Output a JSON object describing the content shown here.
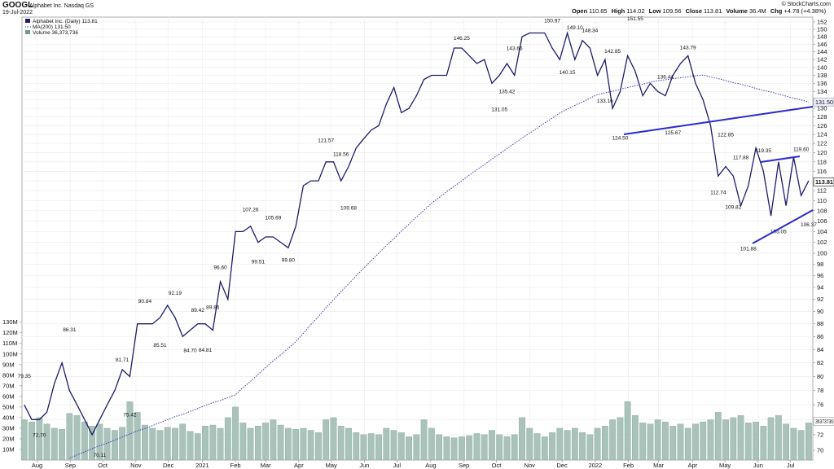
{
  "header": {
    "symbol": "GOOGL",
    "name": "Alphabet Inc. Nasdaq GS",
    "date": "19-Jul-2022",
    "quote": [
      {
        "label": "Open",
        "value": "110.85"
      },
      {
        "label": "High",
        "value": "114.02"
      },
      {
        "label": "Low",
        "value": "109.56"
      },
      {
        "label": "Close",
        "value": "113.81"
      },
      {
        "label": "Volume",
        "value": "36.4M"
      },
      {
        "label": "Chg",
        "value": "+4.78 (+4.38%)"
      }
    ],
    "copyright": "© StockCharts.com"
  },
  "chart_data": {
    "type": "line",
    "ylog": true,
    "grid": true,
    "xlim": [
      -0.3,
      104.55
    ],
    "xticks": [
      {
        "value": 1.7,
        "label": "Aug"
      },
      {
        "value": 6.1,
        "label": "Sep"
      },
      {
        "value": 10.4,
        "label": "Oct"
      },
      {
        "value": 14.8,
        "label": "Nov"
      },
      {
        "value": 19.1,
        "label": "Dec"
      },
      {
        "value": 23.6,
        "label": "2021"
      },
      {
        "value": 28,
        "label": "Feb"
      },
      {
        "value": 32,
        "label": "Mar"
      },
      {
        "value": 36.4,
        "label": "Apr"
      },
      {
        "value": 40.7,
        "label": "May"
      },
      {
        "value": 45.1,
        "label": "Jun"
      },
      {
        "value": 49.4,
        "label": "Jul"
      },
      {
        "value": 53.9,
        "label": "Aug"
      },
      {
        "value": 58.3,
        "label": "Sep"
      },
      {
        "value": 62.6,
        "label": "Oct"
      },
      {
        "value": 67,
        "label": "Nov"
      },
      {
        "value": 71.3,
        "label": "Dec"
      },
      {
        "value": 75.7,
        "label": "2022"
      },
      {
        "value": 80.1,
        "label": "Feb"
      },
      {
        "value": 84.1,
        "label": "Mar"
      },
      {
        "value": 88.6,
        "label": "Apr"
      },
      {
        "value": 92.9,
        "label": "May"
      },
      {
        "value": 97.3,
        "label": "Jun"
      },
      {
        "value": 101.6,
        "label": "Jul"
      }
    ],
    "ylim": [
      68.77,
      153.35
    ],
    "yticks": [
      70,
      72,
      74,
      76,
      78,
      80,
      82,
      84,
      86,
      88,
      90,
      92,
      94,
      96,
      98,
      100,
      102,
      104,
      106,
      108,
      110,
      112,
      114,
      116,
      118,
      120,
      122,
      124,
      126,
      128,
      130,
      132,
      134,
      136,
      138,
      140,
      142,
      144,
      146,
      148,
      150,
      152
    ],
    "y2lim": [
      0,
      417.7
    ],
    "y2ticks": [
      {
        "value": 10,
        "label": "10M"
      },
      {
        "value": 20,
        "label": "20M"
      },
      {
        "value": 30,
        "label": "30M"
      },
      {
        "value": 40,
        "label": "40M"
      },
      {
        "value": 50,
        "label": "50M"
      },
      {
        "value": 60,
        "label": "60M"
      },
      {
        "value": 70,
        "label": "70M"
      },
      {
        "value": 80,
        "label": "80M"
      },
      {
        "value": 90,
        "label": "90M"
      },
      {
        "value": 100,
        "label": "100M"
      },
      {
        "value": 110,
        "label": "110M"
      },
      {
        "value": 120,
        "label": "120M"
      },
      {
        "value": 130,
        "label": "130M"
      }
    ],
    "series": [
      {
        "name": "Alphabet Inc. (Daily) 113.81",
        "color": "#1c1c6b",
        "values": [
          76,
          74,
          74,
          75,
          79,
          82,
          78,
          76,
          74,
          72,
          74,
          76,
          78,
          81,
          80,
          88,
          88,
          88,
          89,
          91,
          89,
          86,
          87,
          88,
          88,
          87,
          95,
          92,
          104,
          104,
          105,
          102,
          103,
          103,
          102,
          101,
          105,
          113,
          114,
          114,
          118,
          118,
          114,
          117,
          121,
          123,
          125,
          126,
          131,
          135,
          129,
          130,
          133,
          137,
          138,
          138,
          138,
          145,
          145,
          143,
          141,
          142,
          136,
          138,
          141,
          138,
          148,
          149,
          149,
          149,
          145,
          142,
          149,
          142,
          147,
          145,
          138,
          142,
          130,
          134,
          143,
          139,
          133,
          136,
          134,
          133,
          138,
          141,
          143,
          136,
          132,
          126,
          115,
          117,
          115,
          109,
          113,
          121,
          116,
          107,
          118,
          109,
          119,
          111,
          114
        ]
      },
      {
        "name": "MA(200) 131.50",
        "color": "#3b3bb5",
        "style": "dotted",
        "values": [
          null,
          null,
          null,
          null,
          null,
          null,
          69.0,
          69.4,
          69.8,
          70.2,
          70.6,
          70.9,
          71.3,
          71.7,
          72.1,
          72.5,
          72.8,
          73.2,
          73.6,
          74.0,
          74.4,
          74.7,
          75.1,
          75.5,
          75.9,
          76.3,
          76.6,
          77.0,
          77.4,
          78.4,
          79.3,
          80.3,
          81.3,
          82.3,
          83.2,
          84.2,
          85.2,
          86.5,
          87.9,
          89.2,
          90.6,
          91.9,
          93.3,
          94.6,
          96.0,
          97.3,
          98.7,
          100.0,
          101.4,
          102.7,
          104.1,
          105.4,
          106.8,
          108.1,
          109.5,
          110.6,
          111.8,
          112.9,
          114.0,
          115.2,
          116.3,
          117.4,
          118.6,
          119.7,
          120.9,
          122.0,
          123.2,
          124.3,
          125.4,
          126.6,
          127.7,
          128.9,
          129.8,
          130.7,
          131.5,
          132.4,
          133.3,
          133.7,
          134.1,
          134.6,
          135.0,
          135.4,
          135.8,
          136.3,
          136.7,
          136.9,
          137.2,
          137.4,
          137.6,
          137.9,
          138.1,
          137.6,
          137.2,
          136.7,
          136.2,
          135.8,
          135.3,
          134.8,
          134.3,
          133.9,
          133.4,
          132.9,
          132.4,
          132.0,
          131.5
        ]
      },
      {
        "name": "Volume 36,373,736",
        "type": "bar",
        "axis": "y2",
        "color": "#a9c2ba",
        "values": [
          38,
          36,
          40,
          34,
          30,
          29,
          44,
          42,
          36,
          32,
          34,
          30,
          28,
          31,
          55,
          45,
          33,
          30,
          28,
          31,
          30,
          34,
          27,
          25,
          32,
          33,
          30,
          40,
          50,
          35,
          30,
          32,
          35,
          38,
          33,
          30,
          29,
          30,
          28,
          26,
          38,
          40,
          32,
          30,
          26,
          24,
          25,
          24,
          30,
          28,
          26,
          22,
          24,
          38,
          30,
          24,
          22,
          21,
          22,
          23,
          25,
          24,
          28,
          24,
          22,
          24,
          40,
          30,
          25,
          22,
          26,
          30,
          28,
          30,
          26,
          24,
          30,
          32,
          38,
          40,
          55,
          42,
          35,
          34,
          38,
          36,
          32,
          34,
          30,
          34,
          36,
          38,
          45,
          38,
          40,
          42,
          35,
          36,
          32,
          40,
          42,
          34,
          30,
          28,
          35
        ]
      }
    ],
    "annotations": [
      {
        "x": 0,
        "value": 79.35,
        "label": "79.35"
      },
      {
        "x": 2,
        "value": 72.7,
        "label": "72.70"
      },
      {
        "x": 6,
        "value": 86.31,
        "label": "86.31"
      },
      {
        "x": 10,
        "value": 70.11,
        "label": "70.11"
      },
      {
        "x": 13,
        "value": 81.71,
        "label": "81.71"
      },
      {
        "x": 14,
        "value": 75.42,
        "label": "75.42"
      },
      {
        "x": 16,
        "value": 90.84,
        "label": "90.84"
      },
      {
        "x": 18,
        "value": 85.51,
        "label": "85.51"
      },
      {
        "x": 20,
        "value": 92.19,
        "label": "92.19"
      },
      {
        "x": 22,
        "value": 84.7,
        "label": "84.70"
      },
      {
        "x": 23,
        "value": 89.42,
        "label": "89.42"
      },
      {
        "x": 24,
        "value": 84.81,
        "label": "84.81"
      },
      {
        "x": 25,
        "value": 89.86,
        "label": "89.86"
      },
      {
        "x": 26,
        "value": 96.6,
        "label": "96.60"
      },
      {
        "x": 30,
        "value": 107.26,
        "label": "107.26"
      },
      {
        "x": 31,
        "value": 99.51,
        "label": "99.51"
      },
      {
        "x": 33,
        "value": 105.69,
        "label": "105.69"
      },
      {
        "x": 35,
        "value": 99.8,
        "label": "99.80"
      },
      {
        "x": 40,
        "value": 121.57,
        "label": "121.57"
      },
      {
        "x": 42,
        "value": 118.56,
        "label": "118.56"
      },
      {
        "x": 43,
        "value": 109.68,
        "label": "109.68"
      },
      {
        "x": 58,
        "value": 146.25,
        "label": "146.25"
      },
      {
        "x": 63,
        "value": 131.05,
        "label": "131.05"
      },
      {
        "x": 64,
        "value": 135.42,
        "label": "135.42"
      },
      {
        "x": 65,
        "value": 143.66,
        "label": "143.66"
      },
      {
        "x": 70,
        "value": 150.97,
        "label": "150.97"
      },
      {
        "x": 72,
        "value": 140.15,
        "label": "140.15"
      },
      {
        "x": 73,
        "value": 149.1,
        "label": "149.10"
      },
      {
        "x": 75,
        "value": 148.34,
        "label": "148.34"
      },
      {
        "x": 77,
        "value": 133.16,
        "label": "133.16"
      },
      {
        "x": 78,
        "value": 142.85,
        "label": "142.85"
      },
      {
        "x": 79,
        "value": 124.5,
        "label": "124.50"
      },
      {
        "x": 81,
        "value": 151.55,
        "label": "151.55"
      },
      {
        "x": 85,
        "value": 136.44,
        "label": "136.44"
      },
      {
        "x": 86,
        "value": 125.67,
        "label": "125.67"
      },
      {
        "x": 88,
        "value": 143.79,
        "label": "143.79"
      },
      {
        "x": 92,
        "value": 112.74,
        "label": "112.74"
      },
      {
        "x": 93,
        "value": 122.85,
        "label": "122.85"
      },
      {
        "x": 94,
        "value": 109.82,
        "label": "109.82"
      },
      {
        "x": 95,
        "value": 117.88,
        "label": "117.88"
      },
      {
        "x": 96,
        "value": 101.88,
        "label": "101.88"
      },
      {
        "x": 98,
        "value": 119.35,
        "label": "119.35"
      },
      {
        "x": 100,
        "value": 105.05,
        "label": "105.05"
      },
      {
        "x": 103,
        "value": 119.6,
        "label": "119.60"
      },
      {
        "x": 104,
        "value": 106.37,
        "label": "106.37"
      }
    ],
    "last_labels": [
      {
        "value": 113.81,
        "label": "113.81"
      },
      {
        "value": 131.5,
        "label": "131.50"
      },
      {
        "value": 36.373736,
        "label": "36373736",
        "axis": "y2"
      }
    ]
  }
}
